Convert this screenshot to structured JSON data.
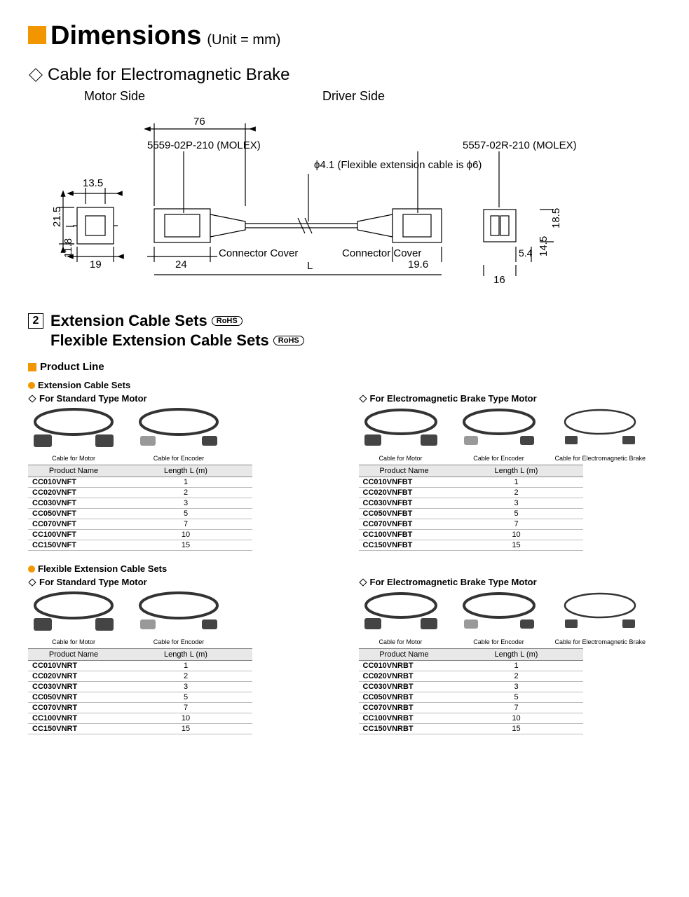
{
  "title": "Dimensions",
  "unit": "(Unit = mm)",
  "cable_section": "Cable for Electromagnetic Brake",
  "motor_side": "Motor Side",
  "driver_side": "Driver Side",
  "diagram": {
    "dim_76": "76",
    "conn_left": "5559-02P-210 (MOLEX)",
    "conn_right": "5557-02R-210 (MOLEX)",
    "phi": "ϕ4.1 (Flexible extension cable is ϕ6)",
    "dim_13_5": "13.5",
    "dim_21_5": "21.5",
    "dim_11_8": "11.8",
    "dim_19": "19",
    "dim_24": "24",
    "cover_l": "Connector Cover",
    "L": "L",
    "cover_r": "Connector Cover",
    "dim_19_6": "19.6",
    "dim_5_4": "5.4",
    "dim_16": "16",
    "dim_18_5": "18.5",
    "dim_14_5": "14.5"
  },
  "sec2_num": "2",
  "sec2_line1": "Extension Cable Sets",
  "sec2_line2": "Flexible Extension Cable Sets",
  "rohs": "RoHS",
  "product_line": "Product Line",
  "ext_sets": "Extension Cable Sets",
  "flex_sets": "Flexible Extension Cable Sets",
  "for_std": "For Standard Type Motor",
  "for_emb": "For Electromagnetic Brake Type Motor",
  "cap_motor": "Cable for Motor",
  "cap_encoder": "Cable for Encoder",
  "cap_emb": "Cable for Electromagnetic Brake",
  "th_name": "Product Name",
  "th_len": "Length L (m)",
  "tables": {
    "vnft": [
      [
        "CC010VNFT",
        "1"
      ],
      [
        "CC020VNFT",
        "2"
      ],
      [
        "CC030VNFT",
        "3"
      ],
      [
        "CC050VNFT",
        "5"
      ],
      [
        "CC070VNFT",
        "7"
      ],
      [
        "CC100VNFT",
        "10"
      ],
      [
        "CC150VNFT",
        "15"
      ]
    ],
    "vnfbt": [
      [
        "CC010VNFBT",
        "1"
      ],
      [
        "CC020VNFBT",
        "2"
      ],
      [
        "CC030VNFBT",
        "3"
      ],
      [
        "CC050VNFBT",
        "5"
      ],
      [
        "CC070VNFBT",
        "7"
      ],
      [
        "CC100VNFBT",
        "10"
      ],
      [
        "CC150VNFBT",
        "15"
      ]
    ],
    "vnrt": [
      [
        "CC010VNRT",
        "1"
      ],
      [
        "CC020VNRT",
        "2"
      ],
      [
        "CC030VNRT",
        "3"
      ],
      [
        "CC050VNRT",
        "5"
      ],
      [
        "CC070VNRT",
        "7"
      ],
      [
        "CC100VNRT",
        "10"
      ],
      [
        "CC150VNRT",
        "15"
      ]
    ],
    "vnrbt": [
      [
        "CC010VNRBT",
        "1"
      ],
      [
        "CC020VNRBT",
        "2"
      ],
      [
        "CC030VNRBT",
        "3"
      ],
      [
        "CC050VNRBT",
        "5"
      ],
      [
        "CC070VNRBT",
        "7"
      ],
      [
        "CC100VNRBT",
        "10"
      ],
      [
        "CC150VNRBT",
        "15"
      ]
    ]
  }
}
